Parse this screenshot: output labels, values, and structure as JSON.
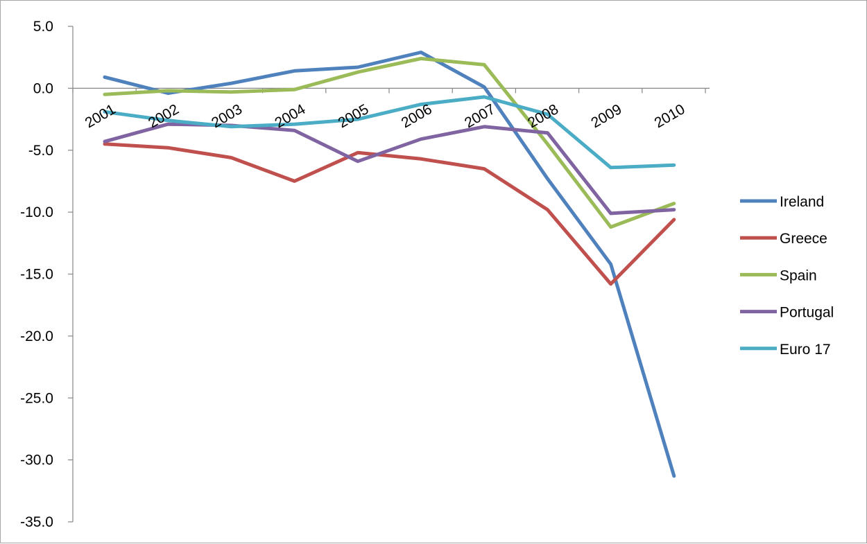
{
  "chart_data": {
    "type": "line",
    "title": "",
    "xlabel": "",
    "ylabel": "",
    "categories": [
      "2001",
      "2002",
      "2003",
      "2004",
      "2005",
      "2006",
      "2007",
      "2008",
      "2009",
      "2010"
    ],
    "ylim": [
      -35.0,
      5.0
    ],
    "yticks": [
      5.0,
      0.0,
      -5.0,
      -10.0,
      -15.0,
      -20.0,
      -25.0,
      -30.0,
      -35.0
    ],
    "ytick_labels": [
      "5.0",
      "0.0",
      "-5.0",
      "-10.0",
      "-15.0",
      "-20.0",
      "-25.0",
      "-30.0",
      "-35.0"
    ],
    "grid": false,
    "legend_position": "right",
    "series": [
      {
        "name": "Ireland",
        "color": "#4f81bd",
        "values": [
          0.9,
          -0.4,
          0.4,
          1.4,
          1.7,
          2.9,
          0.1,
          -7.3,
          -14.2,
          -31.3
        ]
      },
      {
        "name": "Greece",
        "color": "#c0504d",
        "values": [
          -4.5,
          -4.8,
          -5.6,
          -7.5,
          -5.2,
          -5.7,
          -6.5,
          -9.8,
          -15.8,
          -10.6
        ]
      },
      {
        "name": "Spain",
        "color": "#9bbb59",
        "values": [
          -0.5,
          -0.2,
          -0.3,
          -0.1,
          1.3,
          2.4,
          1.9,
          -4.5,
          -11.2,
          -9.3
        ]
      },
      {
        "name": "Portugal",
        "color": "#8064a2",
        "values": [
          -4.3,
          -2.9,
          -3.0,
          -3.4,
          -5.9,
          -4.1,
          -3.1,
          -3.6,
          -10.1,
          -9.8
        ]
      },
      {
        "name": "Euro 17",
        "color": "#4bacc6",
        "values": [
          -1.9,
          -2.6,
          -3.1,
          -2.9,
          -2.5,
          -1.3,
          -0.7,
          -2.1,
          -6.4,
          -6.2
        ]
      }
    ]
  }
}
